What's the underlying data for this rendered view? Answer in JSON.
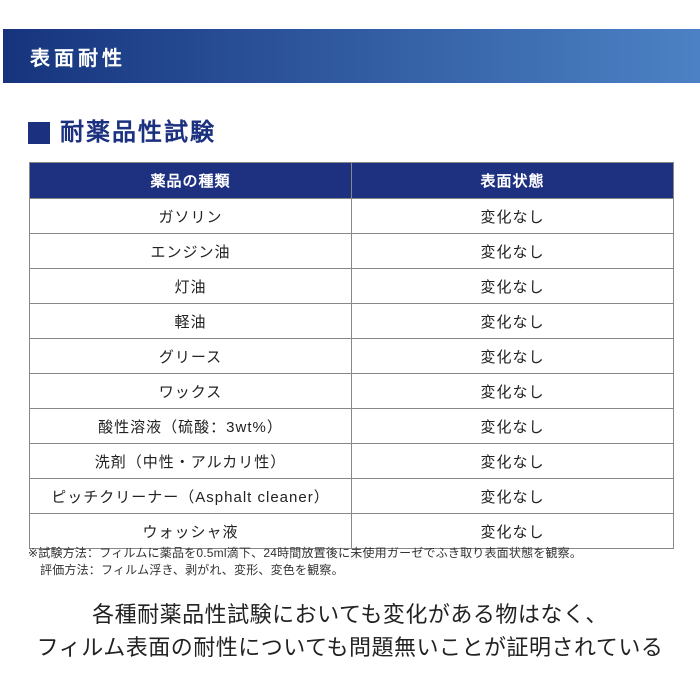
{
  "banner": {
    "title": "表面耐性"
  },
  "section": {
    "title": "耐薬品性試験"
  },
  "table": {
    "headers": [
      "薬品の種類",
      "表面状態"
    ],
    "rows": [
      [
        "ガソリン",
        "変化なし"
      ],
      [
        "エンジン油",
        "変化なし"
      ],
      [
        "灯油",
        "変化なし"
      ],
      [
        "軽油",
        "変化なし"
      ],
      [
        "グリース",
        "変化なし"
      ],
      [
        "ワックス",
        "変化なし"
      ],
      [
        "酸性溶液（硫酸：3wt%）",
        "変化なし"
      ],
      [
        "洗剤（中性・アルカリ性）",
        "変化なし"
      ],
      [
        "ピッチクリーナー（Asphalt cleaner）",
        "変化なし"
      ],
      [
        "ウォッシャ液",
        "変化なし"
      ]
    ]
  },
  "footnotes": [
    "※試験方法：フィルムに薬品を0.5ml滴下、24時間放置後に未使用ガーゼでふき取り表面状態を観察。",
    "評価方法：フィルム浮き、剥がれ、変形、変色を観察。"
  ],
  "conclusion": {
    "line1": "各種耐薬品性試験においても変化がある物はなく、",
    "line2": "フィルム表面の耐性についても問題無いことが証明されている"
  },
  "colors": {
    "banner_gradient_left": "#16347d",
    "banner_gradient_right": "#4c82c5",
    "table_header_bg": "#1e3181",
    "title_text": "#1c3080",
    "body_text": "#222222",
    "border": "#888888"
  }
}
